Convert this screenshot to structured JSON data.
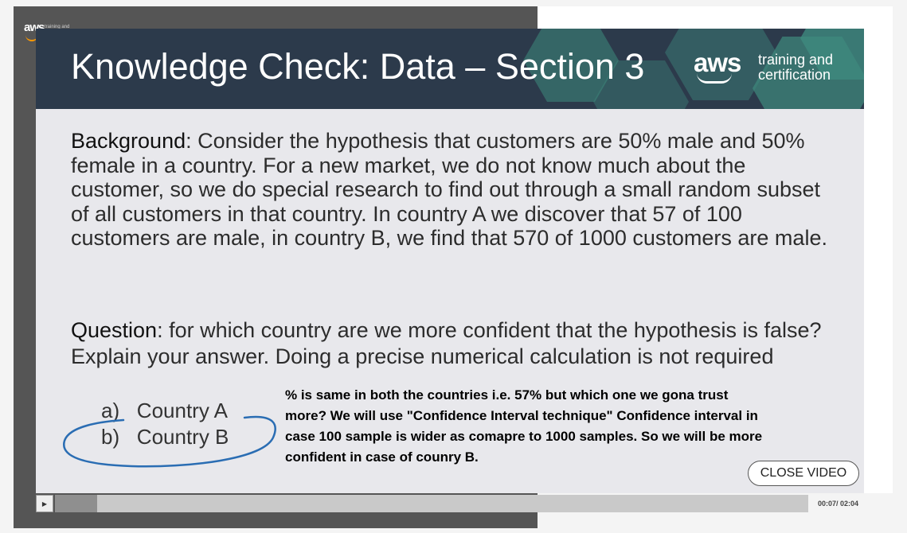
{
  "aws_mini_logo": {
    "text": "aws",
    "subtext": "training and"
  },
  "slide": {
    "title": "Knowledge Check: Data – Section 3",
    "logo": {
      "word": "aws",
      "tagline_line1": "training and",
      "tagline_line2": "certification"
    },
    "background_label": "Background",
    "background_text": ": Consider the hypothesis that customers are 50% male and 50% female in a country.  For a new market, we do not know much about the customer, so we do special research to find out through a small random subset of all customers in that country.  In country A we discover that 57 of 100 customers are male, in country B, we find that 570 of 1000 customers are male.",
    "question_label": "Question",
    "question_text": ": for which country are we more confident that the hypothesis is false?  Explain your answer. Doing a precise numerical calculation is not required",
    "options": [
      {
        "label": "a)",
        "text": "Country A"
      },
      {
        "label": "b)",
        "text": "Country B"
      }
    ],
    "annotation": "% is same in both the countries i.e. 57% but which one we gona trust more? We will use \"Confidence Interval technique\" Confidence interval in case 100 sample is wider as comapre to 1000 samples. So we will be more confident in case of counry B."
  },
  "close_button": {
    "label": "CLOSE VIDEO"
  },
  "player": {
    "time": "00:07/ 02:04",
    "progress": 0.056,
    "play_icon": "play-icon"
  },
  "colors": {
    "header": "#2c3a4b",
    "hex_accent": "#3e8a7e",
    "circle_annotation": "#2a6db3",
    "aws_orange": "#ff9900"
  }
}
